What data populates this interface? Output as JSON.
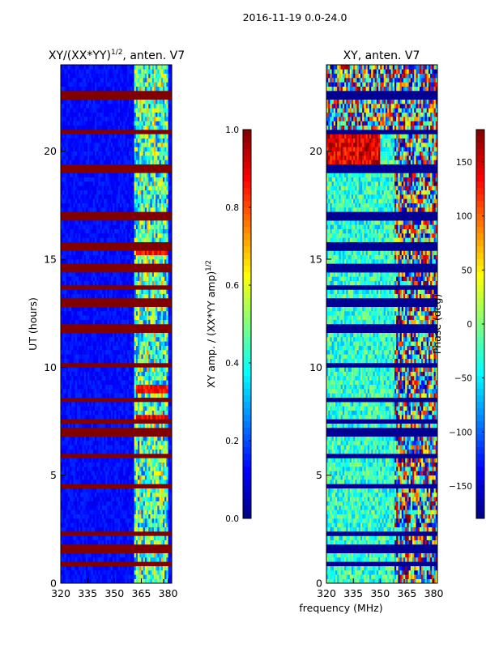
{
  "suptitle": "2016-11-19 0.0-24.0",
  "xlabel_shared": "frequency (MHz)",
  "colormap": [
    "#00007f",
    "#0000ff",
    "#007fff",
    "#00ffff",
    "#7fff7f",
    "#ffff00",
    "#ff7f00",
    "#ff0000",
    "#7f0000"
  ],
  "flag_color": "#800000",
  "chart_data": [
    {
      "type": "heatmap",
      "title_main": "XY/(XX*YY)",
      "title_sup": "1/2",
      "title_tail": ", anten. V7",
      "ylabel": "UT (hours)",
      "xlim": [
        320,
        382
      ],
      "ylim": [
        0,
        24
      ],
      "xticks": [
        320,
        335,
        350,
        365,
        380
      ],
      "xtick_labels": [
        "320",
        "335",
        "350",
        "365",
        "380"
      ],
      "yticks": [
        0,
        5,
        10,
        15,
        20
      ],
      "ytick_labels": [
        "0",
        "5",
        "10",
        "15",
        "20"
      ],
      "colorbar": {
        "label_main": "XY amp. / (XX*YY amp)",
        "label_sup": "1/2",
        "range": [
          0.0,
          1.0
        ],
        "ticks": [
          0.0,
          0.2,
          0.4,
          0.6,
          0.8,
          1.0
        ],
        "tick_labels": [
          "0.0",
          "0.2",
          "0.4",
          "0.6",
          "0.8",
          "1.0"
        ]
      }
    },
    {
      "type": "heatmap",
      "title": "XY, anten. V7",
      "xlim": [
        320,
        382
      ],
      "ylim": [
        0,
        24
      ],
      "xticks": [
        320,
        335,
        350,
        365,
        380
      ],
      "xtick_labels": [
        "320",
        "335",
        "350",
        "365",
        "380"
      ],
      "yticks": [
        0,
        5,
        10,
        15,
        20
      ],
      "ytick_labels": [
        "0",
        "5",
        "10",
        "15",
        "20"
      ],
      "colorbar": {
        "label": "Phase (deg)",
        "range": [
          -180,
          180
        ],
        "ticks": [
          -150,
          -100,
          -50,
          0,
          50,
          100,
          150
        ],
        "tick_labels": [
          "−150",
          "−100",
          "−50",
          "0",
          "50",
          "100",
          "150"
        ]
      }
    }
  ],
  "flagged_hours": [
    0.9,
    1.6,
    2.35,
    4.5,
    5.95,
    7.0,
    7.55,
    8.5,
    10.1,
    11.8,
    13.0,
    13.7,
    14.6,
    15.6,
    16.9,
    17.05,
    19.2,
    20.9,
    22.6
  ]
}
